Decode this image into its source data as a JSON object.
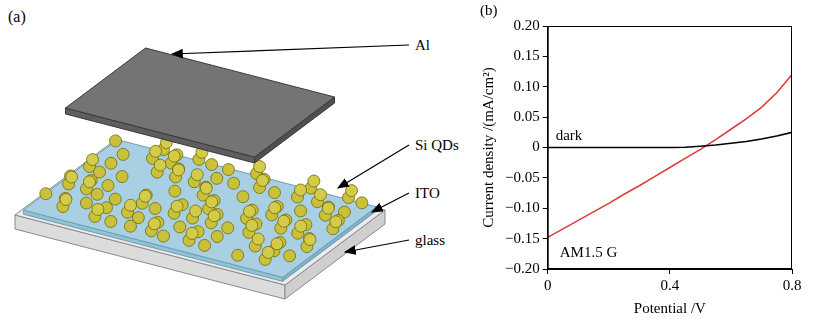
{
  "chart_data": {
    "type": "line",
    "title": "(b)",
    "x_label": "Potential /V",
    "y_label": "Current density /(mA/cm²)",
    "x": [
      0,
      0.05,
      0.1,
      0.15,
      0.2,
      0.25,
      0.3,
      0.35,
      0.4,
      0.45,
      0.5,
      0.55,
      0.6,
      0.65,
      0.7,
      0.75,
      0.8
    ],
    "series": [
      {
        "name": "dark",
        "color": "#000000",
        "values": [
          0,
          0,
          0,
          0,
          0,
          0,
          0,
          0,
          0,
          0.0005,
          0.002,
          0.004,
          0.007,
          0.01,
          0.014,
          0.019,
          0.025
        ]
      },
      {
        "name": "AM1.5 G",
        "color": "#e03c3c",
        "values": [
          -0.148,
          -0.134,
          -0.12,
          -0.106,
          -0.092,
          -0.077,
          -0.063,
          -0.048,
          -0.033,
          -0.018,
          -0.003,
          0.013,
          0.03,
          0.047,
          0.066,
          0.09,
          0.12
        ]
      }
    ],
    "xlim": [
      0,
      0.8
    ],
    "xticks": [
      0,
      0.4,
      0.8
    ],
    "ylim": [
      -0.2,
      0.2
    ],
    "yticks": [
      {
        "value": -0.2,
        "label": "−0.20"
      },
      {
        "value": -0.15,
        "label": "−0.15"
      },
      {
        "value": -0.1,
        "label": "−0.10"
      },
      {
        "value": -0.05,
        "label": "−0.05"
      },
      0,
      {
        "value": 0.05,
        "label": "0.05"
      },
      {
        "value": 0.1,
        "label": "0.10"
      },
      {
        "value": 0.15,
        "label": "0.15"
      },
      {
        "value": 0.2,
        "label": "0.20"
      }
    ],
    "grid": false
  },
  "diagram": {
    "label": "(a)",
    "layers": [
      "Al",
      "Si QDs",
      "ITO",
      "glass"
    ]
  }
}
